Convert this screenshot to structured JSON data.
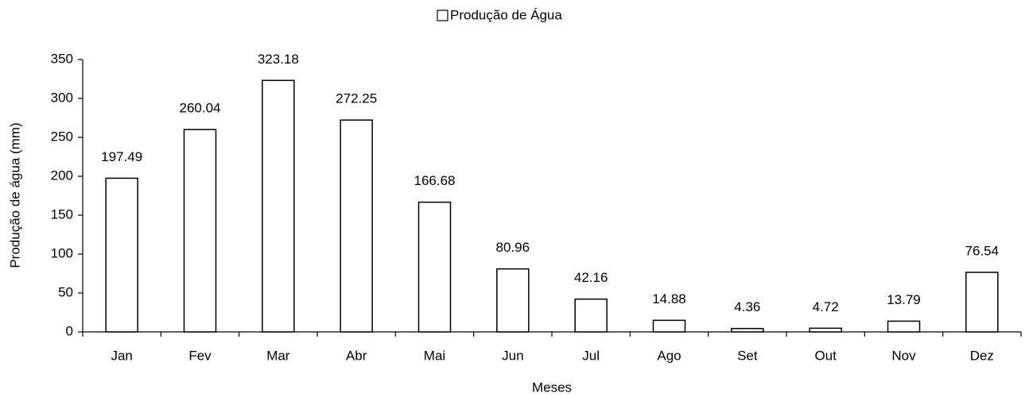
{
  "chart_data": {
    "type": "bar",
    "y_label": "Produção de água (mm)",
    "x_label": "Meses",
    "categories": [
      "Jan",
      "Fev",
      "Mar",
      "Abr",
      "Mai",
      "Jun",
      "Jul",
      "Ago",
      "Set",
      "Out",
      "Nov",
      "Dez"
    ],
    "series": [
      {
        "name": "Produção de Água",
        "color": "#ffffff",
        "values": [
          197.49,
          260.04,
          323.18,
          272.25,
          166.68,
          80.96,
          42.16,
          14.88,
          4.36,
          4.72,
          13.79,
          76.54
        ]
      }
    ],
    "ylim": [
      0,
      350
    ],
    "yticks": [
      0,
      50,
      100,
      150,
      200,
      250,
      300,
      350
    ],
    "grid": false,
    "legend": "top"
  }
}
